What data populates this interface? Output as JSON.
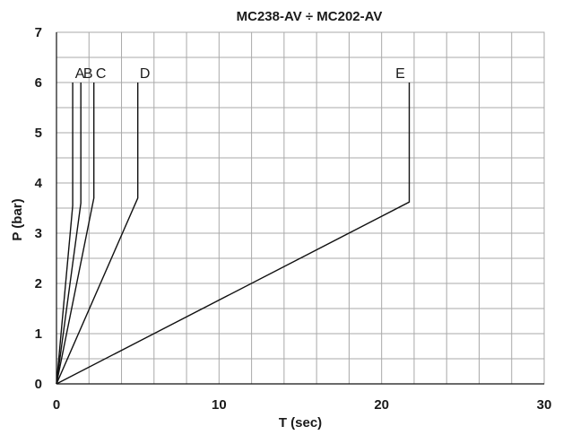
{
  "chart_data": {
    "type": "line",
    "title": "MC238-AV ÷ MC202-AV",
    "xlabel": "T (sec)",
    "ylabel": "P (bar)",
    "xlim": [
      0,
      30
    ],
    "ylim": [
      0,
      7
    ],
    "x_ticks": [
      0,
      10,
      20,
      30
    ],
    "y_ticks": [
      0,
      1,
      2,
      3,
      4,
      5,
      6,
      7
    ],
    "x_minor_step": 2,
    "y_minor_step": 0.5,
    "grid": true,
    "line_color": "#111111",
    "grid_color": "#a9a9a9",
    "series": [
      {
        "name": "A",
        "points": [
          [
            0,
            0
          ],
          [
            1.0,
            3.55
          ],
          [
            1.0,
            6.0
          ]
        ]
      },
      {
        "name": "B",
        "points": [
          [
            0,
            0
          ],
          [
            1.5,
            3.6
          ],
          [
            1.5,
            6.0
          ]
        ]
      },
      {
        "name": "C",
        "points": [
          [
            0,
            0
          ],
          [
            2.3,
            3.7
          ],
          [
            2.3,
            6.0
          ]
        ]
      },
      {
        "name": "D",
        "points": [
          [
            0,
            0
          ],
          [
            5.0,
            3.7
          ],
          [
            5.0,
            6.0
          ]
        ]
      },
      {
        "name": "E",
        "points": [
          [
            0,
            0
          ],
          [
            21.7,
            3.62
          ],
          [
            21.7,
            6.0
          ]
        ]
      }
    ]
  }
}
